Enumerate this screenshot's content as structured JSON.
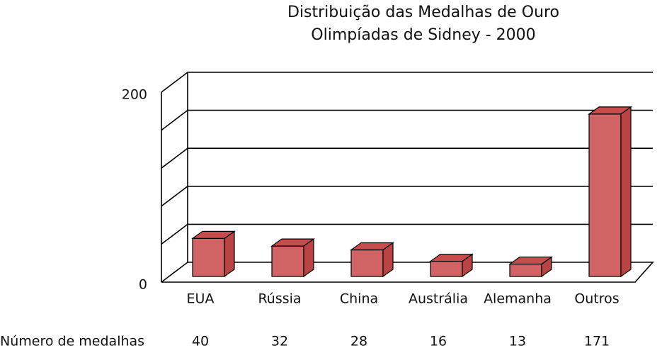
{
  "chart_data": {
    "type": "bar3d",
    "title": "Distribuição das Medalhas de Ouro",
    "subtitle": "Olimpíadas de Sidney - 2000",
    "categories": [
      "EUA",
      "Rússia",
      "China",
      "Austrália",
      "Alemanha",
      "Outros"
    ],
    "values": [
      40,
      32,
      28,
      16,
      13,
      171
    ],
    "table_label": "Número de medalhas",
    "color": "#d06464",
    "ylim": [
      0,
      200
    ],
    "yticks": [
      0,
      200
    ],
    "grid_ticks": [
      40,
      80,
      120,
      160
    ],
    "grid": true
  }
}
